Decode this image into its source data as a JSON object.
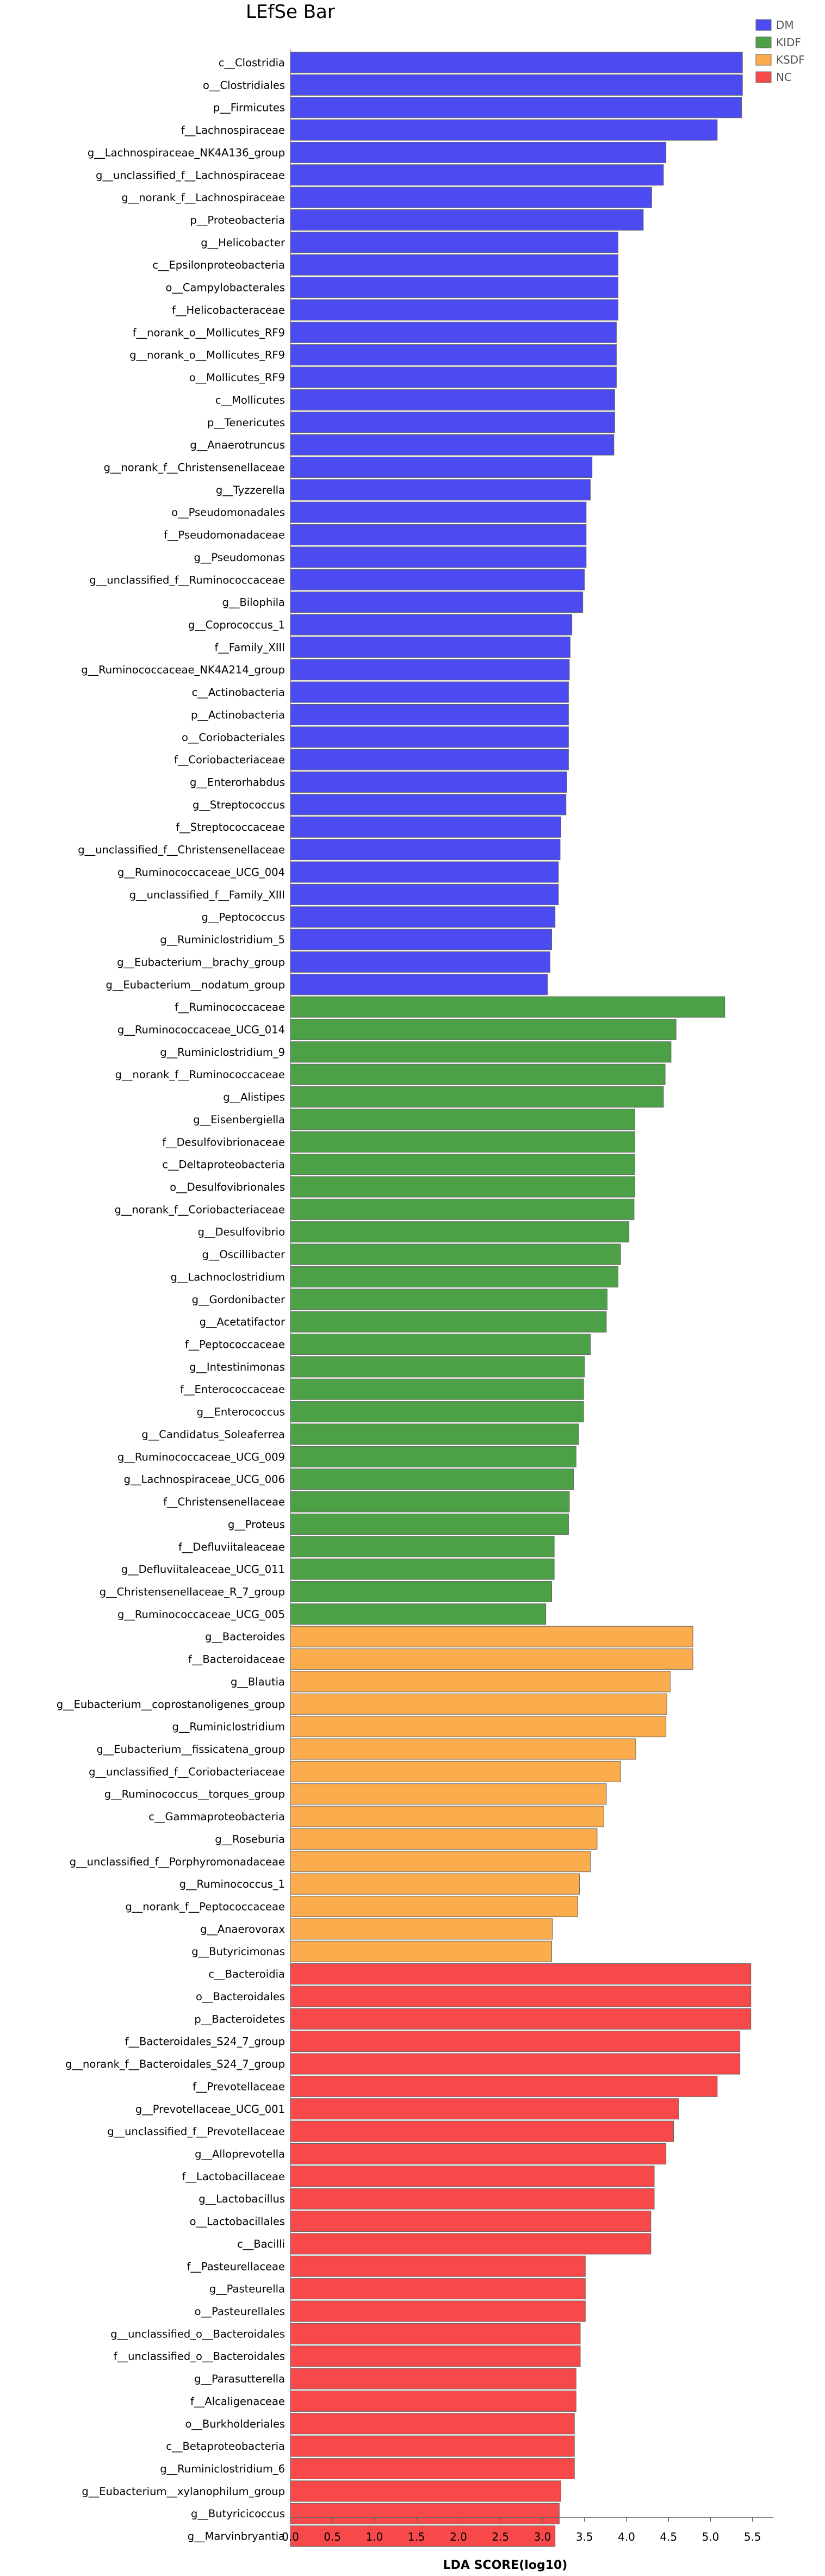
{
  "chart_data": {
    "type": "bar",
    "orientation": "horizontal",
    "title": "LEfSe Bar",
    "xlabel": "LDA SCORE(log10)",
    "ylabel": "",
    "xlim": [
      0,
      5.75
    ],
    "xticks": [
      "0.0",
      "0.5",
      "1.0",
      "1.5",
      "2.0",
      "2.5",
      "3.0",
      "3.5",
      "4.0",
      "4.5",
      "5.0",
      "5.5"
    ],
    "legend_position": "top-right",
    "grid": false,
    "groups": [
      {
        "name": "DM",
        "color": "#4b4bf1"
      },
      {
        "name": "KIDF",
        "color": "#4ca146"
      },
      {
        "name": "KSDF",
        "color": "#fbac4d"
      },
      {
        "name": "NC",
        "color": "#f74949"
      }
    ],
    "bars": [
      {
        "label": "c__Clostridia",
        "value": 5.38,
        "group": "DM"
      },
      {
        "label": "o__Clostridiales",
        "value": 5.38,
        "group": "DM"
      },
      {
        "label": "p__Firmicutes",
        "value": 5.37,
        "group": "DM"
      },
      {
        "label": "f__Lachnospiraceae",
        "value": 5.08,
        "group": "DM"
      },
      {
        "label": "g__Lachnospiraceae_NK4A136_group",
        "value": 4.47,
        "group": "DM"
      },
      {
        "label": "g__unclassified_f__Lachnospiraceae",
        "value": 4.44,
        "group": "DM"
      },
      {
        "label": "g__norank_f__Lachnospiraceae",
        "value": 4.3,
        "group": "DM"
      },
      {
        "label": "p__Proteobacteria",
        "value": 4.2,
        "group": "DM"
      },
      {
        "label": "g__Helicobacter",
        "value": 3.9,
        "group": "DM"
      },
      {
        "label": "c__Epsilonproteobacteria",
        "value": 3.9,
        "group": "DM"
      },
      {
        "label": "o__Campylobacterales",
        "value": 3.9,
        "group": "DM"
      },
      {
        "label": "f__Helicobacteraceae",
        "value": 3.9,
        "group": "DM"
      },
      {
        "label": "f__norank_o__Mollicutes_RF9",
        "value": 3.88,
        "group": "DM"
      },
      {
        "label": "g__norank_o__Mollicutes_RF9",
        "value": 3.88,
        "group": "DM"
      },
      {
        "label": "o__Mollicutes_RF9",
        "value": 3.88,
        "group": "DM"
      },
      {
        "label": "c__Mollicutes",
        "value": 3.86,
        "group": "DM"
      },
      {
        "label": "p__Tenericutes",
        "value": 3.86,
        "group": "DM"
      },
      {
        "label": "g__Anaerotruncus",
        "value": 3.85,
        "group": "DM"
      },
      {
        "label": "g__norank_f__Christensenellaceae",
        "value": 3.59,
        "group": "DM"
      },
      {
        "label": "g__Tyzzerella",
        "value": 3.57,
        "group": "DM"
      },
      {
        "label": "o__Pseudomonadales",
        "value": 3.52,
        "group": "DM"
      },
      {
        "label": "f__Pseudomonadaceae",
        "value": 3.52,
        "group": "DM"
      },
      {
        "label": "g__Pseudomonas",
        "value": 3.52,
        "group": "DM"
      },
      {
        "label": "g__unclassified_f__Ruminococcaceae",
        "value": 3.5,
        "group": "DM"
      },
      {
        "label": "g__Bilophila",
        "value": 3.48,
        "group": "DM"
      },
      {
        "label": "g__Coprococcus_1",
        "value": 3.35,
        "group": "DM"
      },
      {
        "label": "f__Family_XIII",
        "value": 3.33,
        "group": "DM"
      },
      {
        "label": "g__Ruminococcaceae_NK4A214_group",
        "value": 3.32,
        "group": "DM"
      },
      {
        "label": "c__Actinobacteria",
        "value": 3.31,
        "group": "DM"
      },
      {
        "label": "p__Actinobacteria",
        "value": 3.31,
        "group": "DM"
      },
      {
        "label": "o__Coriobacteriales",
        "value": 3.31,
        "group": "DM"
      },
      {
        "label": "f__Coriobacteriaceae",
        "value": 3.31,
        "group": "DM"
      },
      {
        "label": "g__Enterorhabdus",
        "value": 3.29,
        "group": "DM"
      },
      {
        "label": "g__Streptococcus",
        "value": 3.28,
        "group": "DM"
      },
      {
        "label": "f__Streptococcaceae",
        "value": 3.22,
        "group": "DM"
      },
      {
        "label": "g__unclassified_f__Christensenellaceae",
        "value": 3.21,
        "group": "DM"
      },
      {
        "label": "g__Ruminococcaceae_UCG_004",
        "value": 3.19,
        "group": "DM"
      },
      {
        "label": "g__unclassified_f__Family_XIII",
        "value": 3.19,
        "group": "DM"
      },
      {
        "label": "g__Peptococcus",
        "value": 3.15,
        "group": "DM"
      },
      {
        "label": "g__Ruminiclostridium_5",
        "value": 3.11,
        "group": "DM"
      },
      {
        "label": "g__Eubacterium__brachy_group",
        "value": 3.09,
        "group": "DM"
      },
      {
        "label": "g__Eubacterium__nodatum_group",
        "value": 3.06,
        "group": "DM"
      },
      {
        "label": "f__Ruminococcaceae",
        "value": 5.17,
        "group": "KIDF"
      },
      {
        "label": "g__Ruminococcaceae_UCG_014",
        "value": 4.59,
        "group": "KIDF"
      },
      {
        "label": "g__Ruminiclostridium_9",
        "value": 4.53,
        "group": "KIDF"
      },
      {
        "label": "g__norank_f__Ruminococcaceae",
        "value": 4.46,
        "group": "KIDF"
      },
      {
        "label": "g__Alistipes",
        "value": 4.44,
        "group": "KIDF"
      },
      {
        "label": "g__Eisenbergiella",
        "value": 4.1,
        "group": "KIDF"
      },
      {
        "label": "f__Desulfovibrionaceae",
        "value": 4.1,
        "group": "KIDF"
      },
      {
        "label": "c__Deltaproteobacteria",
        "value": 4.1,
        "group": "KIDF"
      },
      {
        "label": "o__Desulfovibrionales",
        "value": 4.1,
        "group": "KIDF"
      },
      {
        "label": "g__norank_f__Coriobacteriaceae",
        "value": 4.09,
        "group": "KIDF"
      },
      {
        "label": "g__Desulfovibrio",
        "value": 4.03,
        "group": "KIDF"
      },
      {
        "label": "g__Oscillibacter",
        "value": 3.93,
        "group": "KIDF"
      },
      {
        "label": "g__Lachnoclostridium",
        "value": 3.9,
        "group": "KIDF"
      },
      {
        "label": "g__Gordonibacter",
        "value": 3.77,
        "group": "KIDF"
      },
      {
        "label": "g__Acetatifactor",
        "value": 3.76,
        "group": "KIDF"
      },
      {
        "label": "f__Peptococcaceae",
        "value": 3.57,
        "group": "KIDF"
      },
      {
        "label": "g__Intestinimonas",
        "value": 3.5,
        "group": "KIDF"
      },
      {
        "label": "f__Enterococcaceae",
        "value": 3.49,
        "group": "KIDF"
      },
      {
        "label": "g__Enterococcus",
        "value": 3.49,
        "group": "KIDF"
      },
      {
        "label": "g__Candidatus_Soleaferrea",
        "value": 3.43,
        "group": "KIDF"
      },
      {
        "label": "g__Ruminococcaceae_UCG_009",
        "value": 3.4,
        "group": "KIDF"
      },
      {
        "label": "g__Lachnospiraceae_UCG_006",
        "value": 3.37,
        "group": "KIDF"
      },
      {
        "label": "f__Christensenellaceae",
        "value": 3.32,
        "group": "KIDF"
      },
      {
        "label": "g__Proteus",
        "value": 3.31,
        "group": "KIDF"
      },
      {
        "label": "f__Defluviitaleaceae",
        "value": 3.14,
        "group": "KIDF"
      },
      {
        "label": "g__Defluviitaleaceae_UCG_011",
        "value": 3.14,
        "group": "KIDF"
      },
      {
        "label": "g__Christensenellaceae_R_7_group",
        "value": 3.11,
        "group": "KIDF"
      },
      {
        "label": "g__Ruminococcaceae_UCG_005",
        "value": 3.04,
        "group": "KIDF"
      },
      {
        "label": "g__Bacteroides",
        "value": 4.79,
        "group": "KSDF"
      },
      {
        "label": "f__Bacteroidaceae",
        "value": 4.79,
        "group": "KSDF"
      },
      {
        "label": "g__Blautia",
        "value": 4.52,
        "group": "KSDF"
      },
      {
        "label": "g__Eubacterium__coprostanoligenes_group",
        "value": 4.48,
        "group": "KSDF"
      },
      {
        "label": "g__Ruminiclostridium",
        "value": 4.47,
        "group": "KSDF"
      },
      {
        "label": "g__Eubacterium__fissicatena_group",
        "value": 4.11,
        "group": "KSDF"
      },
      {
        "label": "g__unclassified_f__Coriobacteriaceae",
        "value": 3.93,
        "group": "KSDF"
      },
      {
        "label": "g__Ruminococcus__torques_group",
        "value": 3.76,
        "group": "KSDF"
      },
      {
        "label": "c__Gammaproteobacteria",
        "value": 3.73,
        "group": "KSDF"
      },
      {
        "label": "g__Roseburia",
        "value": 3.65,
        "group": "KSDF"
      },
      {
        "label": "g__unclassified_f__Porphyromonadaceae",
        "value": 3.57,
        "group": "KSDF"
      },
      {
        "label": "g__Ruminococcus_1",
        "value": 3.44,
        "group": "KSDF"
      },
      {
        "label": "g__norank_f__Peptococcaceae",
        "value": 3.42,
        "group": "KSDF"
      },
      {
        "label": "g__Anaerovorax",
        "value": 3.12,
        "group": "KSDF"
      },
      {
        "label": "g__Butyricimonas",
        "value": 3.11,
        "group": "KSDF"
      },
      {
        "label": "c__Bacteroidia",
        "value": 5.48,
        "group": "NC"
      },
      {
        "label": "o__Bacteroidales",
        "value": 5.48,
        "group": "NC"
      },
      {
        "label": "p__Bacteroidetes",
        "value": 5.48,
        "group": "NC"
      },
      {
        "label": "f__Bacteroidales_S24_7_group",
        "value": 5.35,
        "group": "NC"
      },
      {
        "label": "g__norank_f__Bacteroidales_S24_7_group",
        "value": 5.35,
        "group": "NC"
      },
      {
        "label": "f__Prevotellaceae",
        "value": 5.08,
        "group": "NC"
      },
      {
        "label": "g__Prevotellaceae_UCG_001",
        "value": 4.62,
        "group": "NC"
      },
      {
        "label": "g__unclassified_f__Prevotellaceae",
        "value": 4.56,
        "group": "NC"
      },
      {
        "label": "g__Alloprevotella",
        "value": 4.47,
        "group": "NC"
      },
      {
        "label": "f__Lactobacillaceae",
        "value": 4.33,
        "group": "NC"
      },
      {
        "label": "g__Lactobacillus",
        "value": 4.33,
        "group": "NC"
      },
      {
        "label": "o__Lactobacillales",
        "value": 4.29,
        "group": "NC"
      },
      {
        "label": "c__Bacilli",
        "value": 4.29,
        "group": "NC"
      },
      {
        "label": "f__Pasteurellaceae",
        "value": 3.51,
        "group": "NC"
      },
      {
        "label": "g__Pasteurella",
        "value": 3.51,
        "group": "NC"
      },
      {
        "label": "o__Pasteurellales",
        "value": 3.51,
        "group": "NC"
      },
      {
        "label": "g__unclassified_o__Bacteroidales",
        "value": 3.45,
        "group": "NC"
      },
      {
        "label": "f__unclassified_o__Bacteroidales",
        "value": 3.45,
        "group": "NC"
      },
      {
        "label": "g__Parasutterella",
        "value": 3.4,
        "group": "NC"
      },
      {
        "label": "f__Alcaligenaceae",
        "value": 3.4,
        "group": "NC"
      },
      {
        "label": "o__Burkholderiales",
        "value": 3.38,
        "group": "NC"
      },
      {
        "label": "c__Betaproteobacteria",
        "value": 3.38,
        "group": "NC"
      },
      {
        "label": "g__Ruminiclostridium_6",
        "value": 3.38,
        "group": "NC"
      },
      {
        "label": "g__Eubacterium__xylanophilum_group",
        "value": 3.22,
        "group": "NC"
      },
      {
        "label": "g__Butyricicoccus",
        "value": 3.2,
        "group": "NC"
      },
      {
        "label": "g__Marvinbryantia",
        "value": 3.15,
        "group": "NC"
      }
    ]
  }
}
